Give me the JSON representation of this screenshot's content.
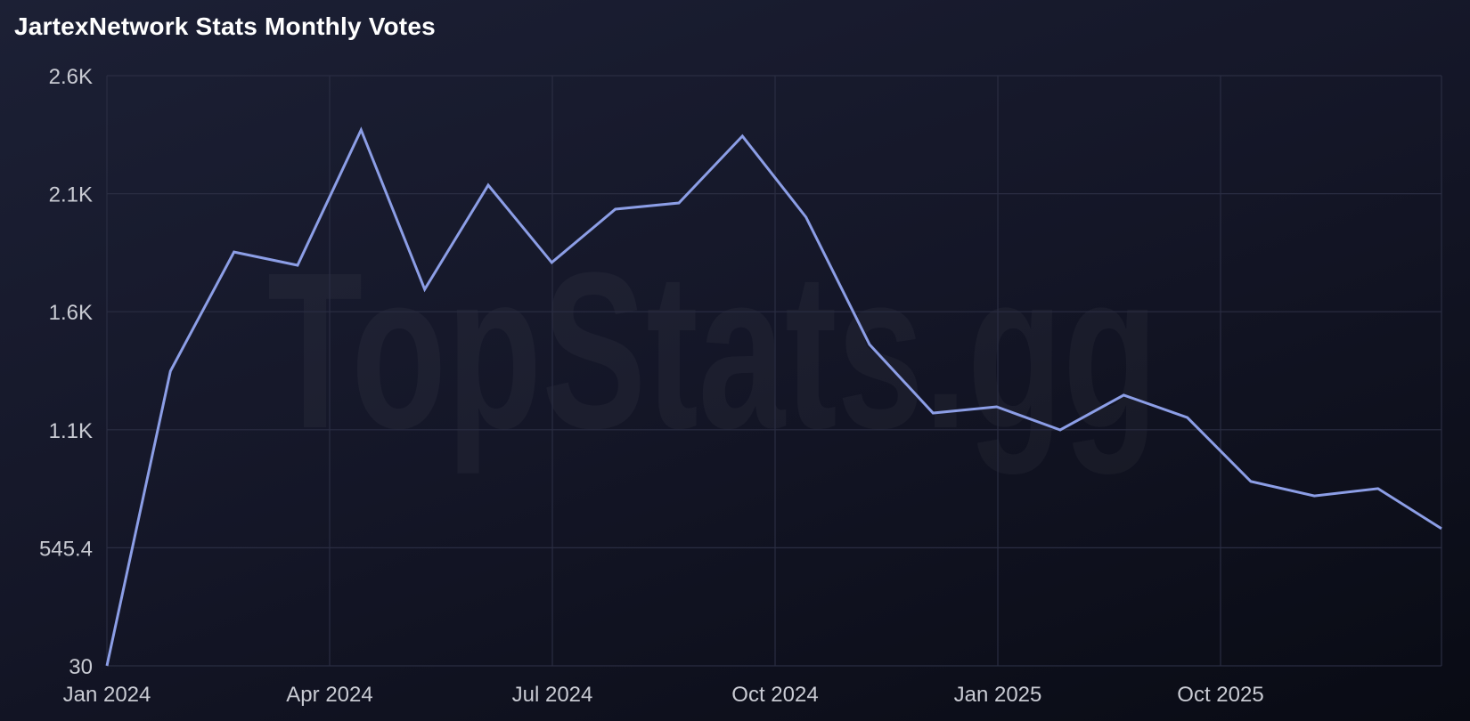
{
  "title": "JartexNetwork Stats Monthly Votes",
  "watermark": "TopStats.gg",
  "colors": {
    "line": "#8c9ee6",
    "grid": "#2a2d42",
    "axis_text": "#c9cbd3",
    "title": "#ffffff"
  },
  "chart_data": {
    "type": "line",
    "title": "JartexNetwork Stats Monthly Votes",
    "xlabel": "",
    "ylabel": "",
    "ylim": [
      30,
      2607
    ],
    "grid": true,
    "legend": null,
    "y_ticks": [
      "30",
      "545.4",
      "1.1K",
      "1.6K",
      "2.1K",
      "2.6K"
    ],
    "x_ticks": [
      "Jan 2024",
      "Apr 2024",
      "Jul 2024",
      "Oct 2024",
      "Jan 2025",
      "Oct 2025"
    ],
    "x": [
      "Jan 2024",
      "Feb 2024",
      "Mar 2024",
      "Apr 2024",
      "May 2024",
      "Jun 2024",
      "Jul 2024",
      "Aug 2024",
      "Sep 2024",
      "Oct 2024",
      "Nov 2024",
      "Dec 2024",
      "Jan 2025",
      "Feb 2025",
      "Mar 2025",
      "Apr 2025",
      "May 2025",
      "Jun 2025",
      "Jul 2025",
      "Aug 2025",
      "Sep 2025",
      "Oct 2025"
    ],
    "series": [
      {
        "name": "Monthly Votes",
        "values": [
          30,
          1317,
          1837,
          1779,
          2370,
          1674,
          2129,
          1791,
          2024,
          2051,
          2343,
          1989,
          1433,
          1134,
          1161,
          1060,
          1212,
          1114,
          835,
          772,
          804,
          629
        ]
      }
    ]
  }
}
